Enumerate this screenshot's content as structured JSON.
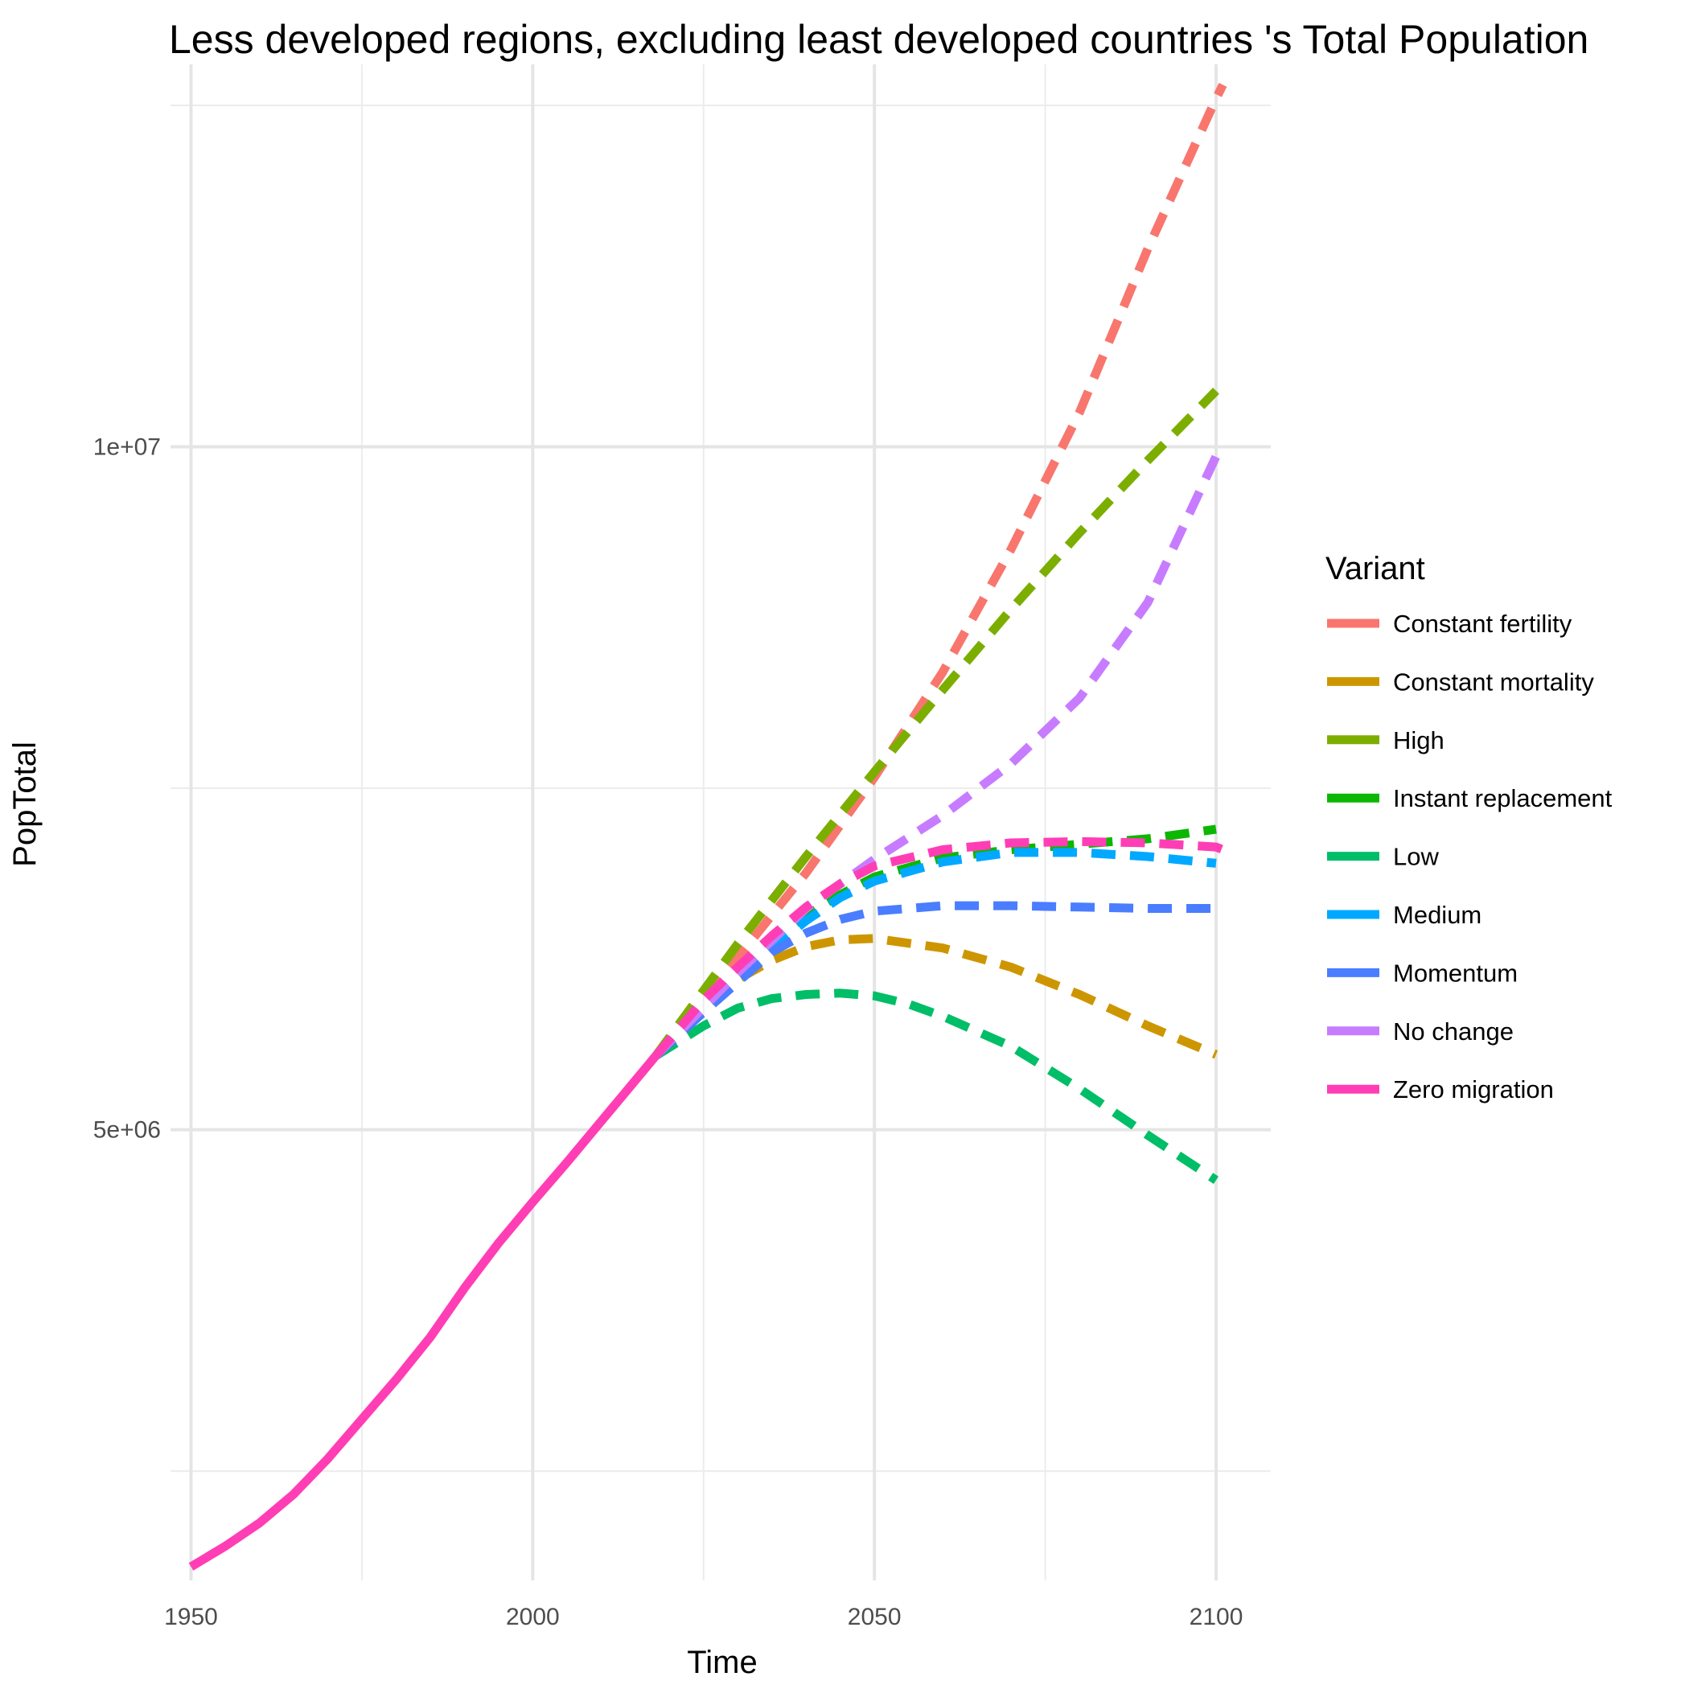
{
  "chart_data": {
    "type": "line",
    "title": "Less developed regions, excluding least developed countries 's Total Population",
    "xlabel": "Time",
    "ylabel": "PopTotal",
    "xlim": [
      1947,
      2108
    ],
    "ylim": [
      1700000,
      12800000
    ],
    "x_ticks": [
      1950,
      2000,
      2050,
      2100
    ],
    "x_tick_labels": [
      "1950",
      "2000",
      "2050",
      "2100"
    ],
    "y_ticks": [
      5000000,
      10000000
    ],
    "y_tick_labels": [
      "5e+06",
      "1e+07"
    ],
    "y_minor_ticks": [
      2500000,
      7500000,
      12500000
    ],
    "grid": true,
    "legend": {
      "title": "Variant",
      "position": "right"
    },
    "historical": {
      "series": "Zero migration",
      "x": [
        1950,
        1955,
        1960,
        1965,
        1970,
        1975,
        1980,
        1985,
        1990,
        1995,
        2000,
        2005,
        2010,
        2015,
        2018
      ],
      "values": [
        1800000,
        1950000,
        2120000,
        2330000,
        2590000,
        2880000,
        3170000,
        3480000,
        3840000,
        4170000,
        4470000,
        4760000,
        5060000,
        5360000,
        5540000
      ]
    },
    "series": [
      {
        "name": "Constant fertility",
        "color": "#F8766D",
        "x": [
          2018,
          2030,
          2040,
          2050,
          2060,
          2070,
          2080,
          2090,
          2100,
          2101
        ],
        "values": [
          5540000,
          6260000,
          6880000,
          7580000,
          8350000,
          9250000,
          10250000,
          11450000,
          12550000,
          12650000
        ]
      },
      {
        "name": "Constant mortality",
        "color": "#CD9600",
        "x": [
          2018,
          2025,
          2030,
          2035,
          2040,
          2045,
          2050,
          2060,
          2070,
          2080,
          2090,
          2100
        ],
        "values": [
          5540000,
          5900000,
          6100000,
          6240000,
          6340000,
          6390000,
          6400000,
          6330000,
          6190000,
          5990000,
          5760000,
          5550000
        ]
      },
      {
        "name": "High",
        "color": "#7CAE00",
        "x": [
          2018,
          2030,
          2040,
          2050,
          2060,
          2070,
          2080,
          2090,
          2100
        ],
        "values": [
          5540000,
          6360000,
          7000000,
          7620000,
          8220000,
          8810000,
          9370000,
          9900000,
          10410000
        ]
      },
      {
        "name": "Instant replacement",
        "color": "#0CB702",
        "x": [
          2018,
          2025,
          2030,
          2035,
          2040,
          2045,
          2050,
          2060,
          2070,
          2080,
          2090,
          2100
        ],
        "values": [
          5540000,
          5900000,
          6130000,
          6370000,
          6570000,
          6720000,
          6850000,
          6990000,
          7050000,
          7090000,
          7130000,
          7200000
        ]
      },
      {
        "name": "Low",
        "color": "#00BE67",
        "x": [
          2018,
          2025,
          2030,
          2035,
          2040,
          2045,
          2050,
          2055,
          2060,
          2070,
          2080,
          2090,
          2100
        ],
        "values": [
          5540000,
          5760000,
          5890000,
          5960000,
          5990000,
          6000000,
          5980000,
          5920000,
          5830000,
          5610000,
          5300000,
          4960000,
          4630000
        ]
      },
      {
        "name": "Medium",
        "color": "#00A9FF",
        "x": [
          2018,
          2025,
          2030,
          2035,
          2040,
          2045,
          2050,
          2060,
          2070,
          2080,
          2090,
          2100
        ],
        "values": [
          5540000,
          5880000,
          6110000,
          6330000,
          6530000,
          6700000,
          6820000,
          6960000,
          7030000,
          7030000,
          7000000,
          6950000
        ]
      },
      {
        "name": "Momentum",
        "color": "#4A7DFF",
        "x": [
          2018,
          2025,
          2030,
          2035,
          2040,
          2045,
          2050,
          2060,
          2070,
          2080,
          2090,
          2100
        ],
        "values": [
          5540000,
          5860000,
          6080000,
          6300000,
          6440000,
          6540000,
          6600000,
          6640000,
          6640000,
          6630000,
          6620000,
          6620000
        ]
      },
      {
        "name": "No change",
        "color": "#C77CFF",
        "x": [
          2018,
          2030,
          2040,
          2050,
          2060,
          2070,
          2080,
          2090,
          2100
        ],
        "values": [
          5540000,
          6150000,
          6620000,
          6980000,
          7300000,
          7680000,
          8160000,
          8860000,
          9930000
        ]
      },
      {
        "name": "Zero migration",
        "color": "#FF3EB5",
        "x": [
          2018,
          2025,
          2030,
          2035,
          2040,
          2045,
          2050,
          2060,
          2070,
          2080,
          2090,
          2100,
          2101
        ],
        "values": [
          5540000,
          5950000,
          6190000,
          6420000,
          6630000,
          6800000,
          6930000,
          7050000,
          7100000,
          7110000,
          7100000,
          7070000,
          7050000
        ]
      }
    ]
  }
}
